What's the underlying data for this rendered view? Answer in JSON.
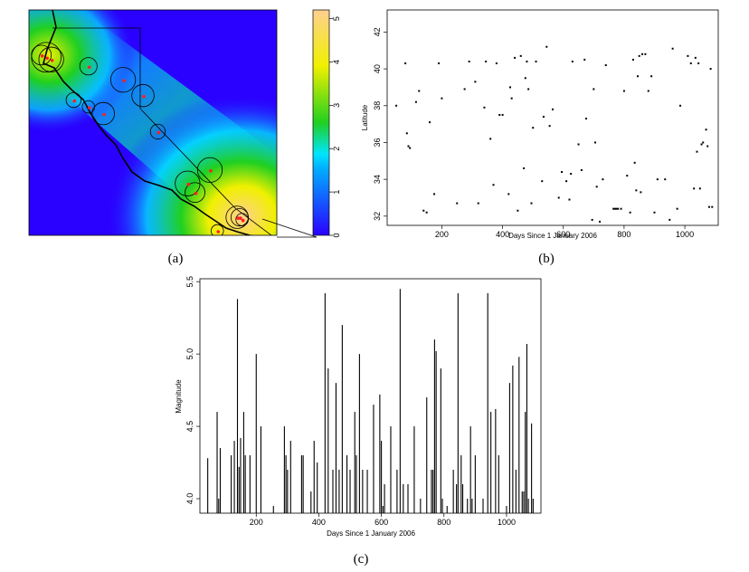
{
  "captions": {
    "a": "(a)",
    "b": "(b)",
    "c": "(c)"
  },
  "chart_data": [
    {
      "type": "heatmap",
      "panel": "a",
      "description_free": true,
      "colorbar": {
        "ticks": [
          "0",
          "1",
          "2",
          "3",
          "4",
          "5"
        ],
        "range": [
          0,
          5.2
        ]
      },
      "colors": {
        "low": "#2a00ff",
        "mid": "#00e5ff",
        "green": "#20d020",
        "yellow": "#f0f000",
        "high": "#ffd090"
      },
      "markers": [
        {
          "cx": 0.07,
          "cy": 0.21,
          "r": 0.06
        },
        {
          "cx": 0.09,
          "cy": 0.22,
          "r": 0.05
        },
        {
          "cx": 0.05,
          "cy": 0.2,
          "r": 0.04
        },
        {
          "cx": 0.24,
          "cy": 0.25,
          "r": 0.035
        },
        {
          "cx": 0.38,
          "cy": 0.31,
          "r": 0.05
        },
        {
          "cx": 0.46,
          "cy": 0.38,
          "r": 0.045
        },
        {
          "cx": 0.3,
          "cy": 0.46,
          "r": 0.045
        },
        {
          "cx": 0.18,
          "cy": 0.4,
          "r": 0.03
        },
        {
          "cx": 0.24,
          "cy": 0.43,
          "r": 0.025
        },
        {
          "cx": 0.52,
          "cy": 0.54,
          "r": 0.03
        },
        {
          "cx": 0.73,
          "cy": 0.71,
          "r": 0.05
        },
        {
          "cx": 0.64,
          "cy": 0.77,
          "r": 0.05
        },
        {
          "cx": 0.67,
          "cy": 0.81,
          "r": 0.04
        },
        {
          "cx": 0.84,
          "cy": 0.92,
          "r": 0.045
        },
        {
          "cx": 0.85,
          "cy": 0.92,
          "r": 0.035
        },
        {
          "cx": 0.86,
          "cy": 0.93,
          "r": 0.025
        },
        {
          "cx": 0.76,
          "cy": 0.98,
          "r": 0.025
        }
      ]
    },
    {
      "type": "scatter",
      "panel": "b",
      "xlabel": "Days Since 1 January 2006",
      "ylabel": "Latitude",
      "xlim": [
        20,
        1110
      ],
      "ylim": [
        31.5,
        43.2
      ],
      "xticks": [
        200,
        400,
        600,
        800,
        1000
      ],
      "yticks": [
        32,
        34,
        36,
        38,
        40,
        42
      ],
      "points": [
        [
          50,
          38.0
        ],
        [
          80,
          40.3
        ],
        [
          85,
          36.5
        ],
        [
          90,
          35.8
        ],
        [
          95,
          35.7
        ],
        [
          115,
          38.2
        ],
        [
          125,
          38.8
        ],
        [
          140,
          32.3
        ],
        [
          150,
          32.2
        ],
        [
          160,
          37.1
        ],
        [
          175,
          33.2
        ],
        [
          190,
          40.3
        ],
        [
          200,
          38.4
        ],
        [
          250,
          32.7
        ],
        [
          275,
          38.9
        ],
        [
          290,
          40.4
        ],
        [
          310,
          39.3
        ],
        [
          320,
          32.7
        ],
        [
          340,
          37.9
        ],
        [
          345,
          40.4
        ],
        [
          360,
          36.2
        ],
        [
          370,
          33.7
        ],
        [
          380,
          40.3
        ],
        [
          390,
          37.5
        ],
        [
          400,
          37.5
        ],
        [
          420,
          33.2
        ],
        [
          425,
          39.0
        ],
        [
          430,
          38.4
        ],
        [
          440,
          40.6
        ],
        [
          450,
          32.3
        ],
        [
          460,
          40.7
        ],
        [
          470,
          34.6
        ],
        [
          475,
          39.5
        ],
        [
          480,
          40.4
        ],
        [
          485,
          38.9
        ],
        [
          495,
          32.7
        ],
        [
          500,
          36.8
        ],
        [
          510,
          40.4
        ],
        [
          530,
          33.9
        ],
        [
          535,
          37.4
        ],
        [
          545,
          41.2
        ],
        [
          555,
          36.9
        ],
        [
          565,
          37.8
        ],
        [
          585,
          33.0
        ],
        [
          595,
          34.4
        ],
        [
          610,
          33.9
        ],
        [
          620,
          32.9
        ],
        [
          625,
          34.3
        ],
        [
          630,
          40.4
        ],
        [
          650,
          35.9
        ],
        [
          660,
          34.5
        ],
        [
          670,
          40.5
        ],
        [
          675,
          37.3
        ],
        [
          695,
          31.8
        ],
        [
          700,
          38.9
        ],
        [
          705,
          36.0
        ],
        [
          710,
          33.6
        ],
        [
          720,
          31.7
        ],
        [
          730,
          34.0
        ],
        [
          740,
          40.2
        ],
        [
          765,
          32.4
        ],
        [
          770,
          32.4
        ],
        [
          775,
          32.4
        ],
        [
          780,
          32.4
        ],
        [
          790,
          32.4
        ],
        [
          800,
          38.8
        ],
        [
          810,
          34.2
        ],
        [
          820,
          32.2
        ],
        [
          830,
          40.5
        ],
        [
          835,
          34.9
        ],
        [
          840,
          33.4
        ],
        [
          845,
          39.6
        ],
        [
          850,
          40.7
        ],
        [
          855,
          33.3
        ],
        [
          860,
          40.8
        ],
        [
          870,
          40.8
        ],
        [
          880,
          38.8
        ],
        [
          890,
          39.6
        ],
        [
          900,
          32.2
        ],
        [
          910,
          34.0
        ],
        [
          935,
          34.0
        ],
        [
          950,
          31.8
        ],
        [
          960,
          41.1
        ],
        [
          975,
          32.4
        ],
        [
          985,
          38.0
        ],
        [
          1010,
          40.7
        ],
        [
          1020,
          40.3
        ],
        [
          1030,
          33.5
        ],
        [
          1035,
          40.6
        ],
        [
          1040,
          35.5
        ],
        [
          1045,
          40.3
        ],
        [
          1050,
          33.5
        ],
        [
          1055,
          35.9
        ],
        [
          1060,
          36.0
        ],
        [
          1070,
          36.7
        ],
        [
          1075,
          35.8
        ],
        [
          1080,
          32.5
        ],
        [
          1085,
          40.0
        ],
        [
          1090,
          32.5
        ]
      ]
    },
    {
      "type": "bar",
      "panel": "c",
      "xlabel": "Days Since 1 January 2006",
      "ylabel": "Magnitude",
      "xlim": [
        20,
        1110
      ],
      "ylim": [
        3.9,
        5.52
      ],
      "xticks": [
        200,
        400,
        600,
        800,
        1000
      ],
      "yticks": [
        4.0,
        4.5,
        5.0,
        5.5
      ],
      "spikes": [
        [
          45,
          4.28
        ],
        [
          75,
          4.6
        ],
        [
          80,
          4.0
        ],
        [
          85,
          4.35
        ],
        [
          120,
          4.3
        ],
        [
          130,
          4.4
        ],
        [
          140,
          5.38
        ],
        [
          145,
          4.22
        ],
        [
          150,
          4.42
        ],
        [
          160,
          4.6
        ],
        [
          165,
          4.3
        ],
        [
          180,
          4.3
        ],
        [
          200,
          5.0
        ],
        [
          215,
          4.5
        ],
        [
          255,
          3.95
        ],
        [
          290,
          4.5
        ],
        [
          295,
          4.3
        ],
        [
          300,
          4.2
        ],
        [
          310,
          4.4
        ],
        [
          345,
          4.3
        ],
        [
          350,
          4.3
        ],
        [
          375,
          4.05
        ],
        [
          385,
          4.4
        ],
        [
          395,
          4.25
        ],
        [
          420,
          5.42
        ],
        [
          430,
          4.9
        ],
        [
          445,
          4.2
        ],
        [
          455,
          4.8
        ],
        [
          465,
          4.2
        ],
        [
          475,
          5.2
        ],
        [
          490,
          4.3
        ],
        [
          500,
          4.2
        ],
        [
          515,
          4.6
        ],
        [
          520,
          4.3
        ],
        [
          530,
          5.0
        ],
        [
          540,
          4.2
        ],
        [
          555,
          4.2
        ],
        [
          575,
          4.65
        ],
        [
          595,
          4.72
        ],
        [
          600,
          4.4
        ],
        [
          605,
          3.95
        ],
        [
          610,
          4.1
        ],
        [
          630,
          4.5
        ],
        [
          650,
          4.2
        ],
        [
          660,
          5.45
        ],
        [
          670,
          4.1
        ],
        [
          685,
          4.1
        ],
        [
          705,
          4.5
        ],
        [
          725,
          4.0
        ],
        [
          745,
          4.7
        ],
        [
          760,
          4.2
        ],
        [
          765,
          4.2
        ],
        [
          770,
          5.1
        ],
        [
          775,
          5.02
        ],
        [
          790,
          4.9
        ],
        [
          795,
          4.0
        ],
        [
          810,
          3.95
        ],
        [
          830,
          4.2
        ],
        [
          840,
          4.1
        ],
        [
          845,
          5.42
        ],
        [
          855,
          4.3
        ],
        [
          860,
          4.1
        ],
        [
          875,
          4.0
        ],
        [
          885,
          4.5
        ],
        [
          890,
          4.0
        ],
        [
          900,
          4.3
        ],
        [
          925,
          4.0
        ],
        [
          940,
          5.42
        ],
        [
          950,
          4.6
        ],
        [
          965,
          4.62
        ],
        [
          975,
          4.3
        ],
        [
          1000,
          3.95
        ],
        [
          1010,
          4.8
        ],
        [
          1020,
          4.92
        ],
        [
          1030,
          4.2
        ],
        [
          1040,
          4.98
        ],
        [
          1050,
          4.05
        ],
        [
          1055,
          4.05
        ],
        [
          1060,
          4.6
        ],
        [
          1065,
          5.07
        ],
        [
          1070,
          4.0
        ],
        [
          1080,
          4.52
        ],
        [
          1085,
          4.0
        ]
      ]
    }
  ]
}
